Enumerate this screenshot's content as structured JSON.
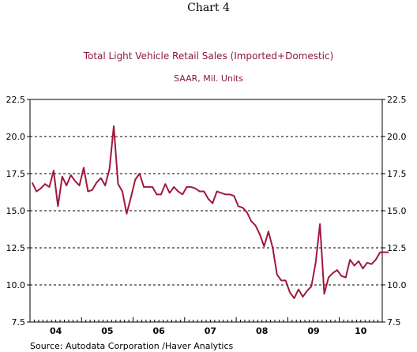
{
  "header": {
    "chart_label": "Chart 4"
  },
  "colors": {
    "series": "#a0183c",
    "title": "#8b1a3a",
    "grid": "#000000"
  },
  "chart_data": {
    "type": "line",
    "title": "Total Light Vehicle Retail Sales (Imported+Domestic)",
    "subtitle": "SAAR, Mil. Units",
    "source": "Source:  Autodata Corporation /Haver Analytics",
    "ylim": [
      7.5,
      22.5
    ],
    "yticks": [
      "7.5",
      "10.0",
      "12.5",
      "15.0",
      "17.5",
      "20.0",
      "22.5"
    ],
    "ytick_values": [
      7.5,
      10.0,
      12.5,
      15.0,
      17.5,
      20.0,
      22.5
    ],
    "grid": "horizontal dashed",
    "x_labels": [
      "04",
      "05",
      "06",
      "07",
      "08",
      "09",
      "10"
    ],
    "x_start": "2004-01",
    "x_end": "2010-10",
    "series": [
      {
        "values": [
          16.9,
          16.3,
          16.5,
          16.8,
          16.6,
          17.7,
          15.3,
          17.3,
          16.7,
          17.4,
          17.0,
          16.7,
          17.9,
          16.3,
          16.4,
          16.9,
          17.2,
          16.7,
          17.8,
          20.7,
          16.8,
          16.3,
          14.8,
          15.9,
          17.1,
          17.5,
          16.6,
          16.6,
          16.6,
          16.1,
          16.1,
          16.8,
          16.2,
          16.6,
          16.3,
          16.1,
          16.6,
          16.6,
          16.5,
          16.3,
          16.3,
          15.8,
          15.5,
          16.3,
          16.2,
          16.1,
          16.1,
          16.0,
          15.3,
          15.2,
          14.9,
          14.3,
          14.0,
          13.4,
          12.6,
          13.6,
          12.5,
          10.7,
          10.3,
          10.3,
          9.5,
          9.1,
          9.7,
          9.2,
          9.6,
          9.9,
          11.5,
          14.1,
          9.4,
          10.5,
          10.8,
          11.0,
          10.6,
          10.5,
          11.7,
          11.3,
          11.6,
          11.1,
          11.5,
          11.4,
          11.7,
          12.2,
          12.2,
          12.2
        ]
      }
    ]
  }
}
